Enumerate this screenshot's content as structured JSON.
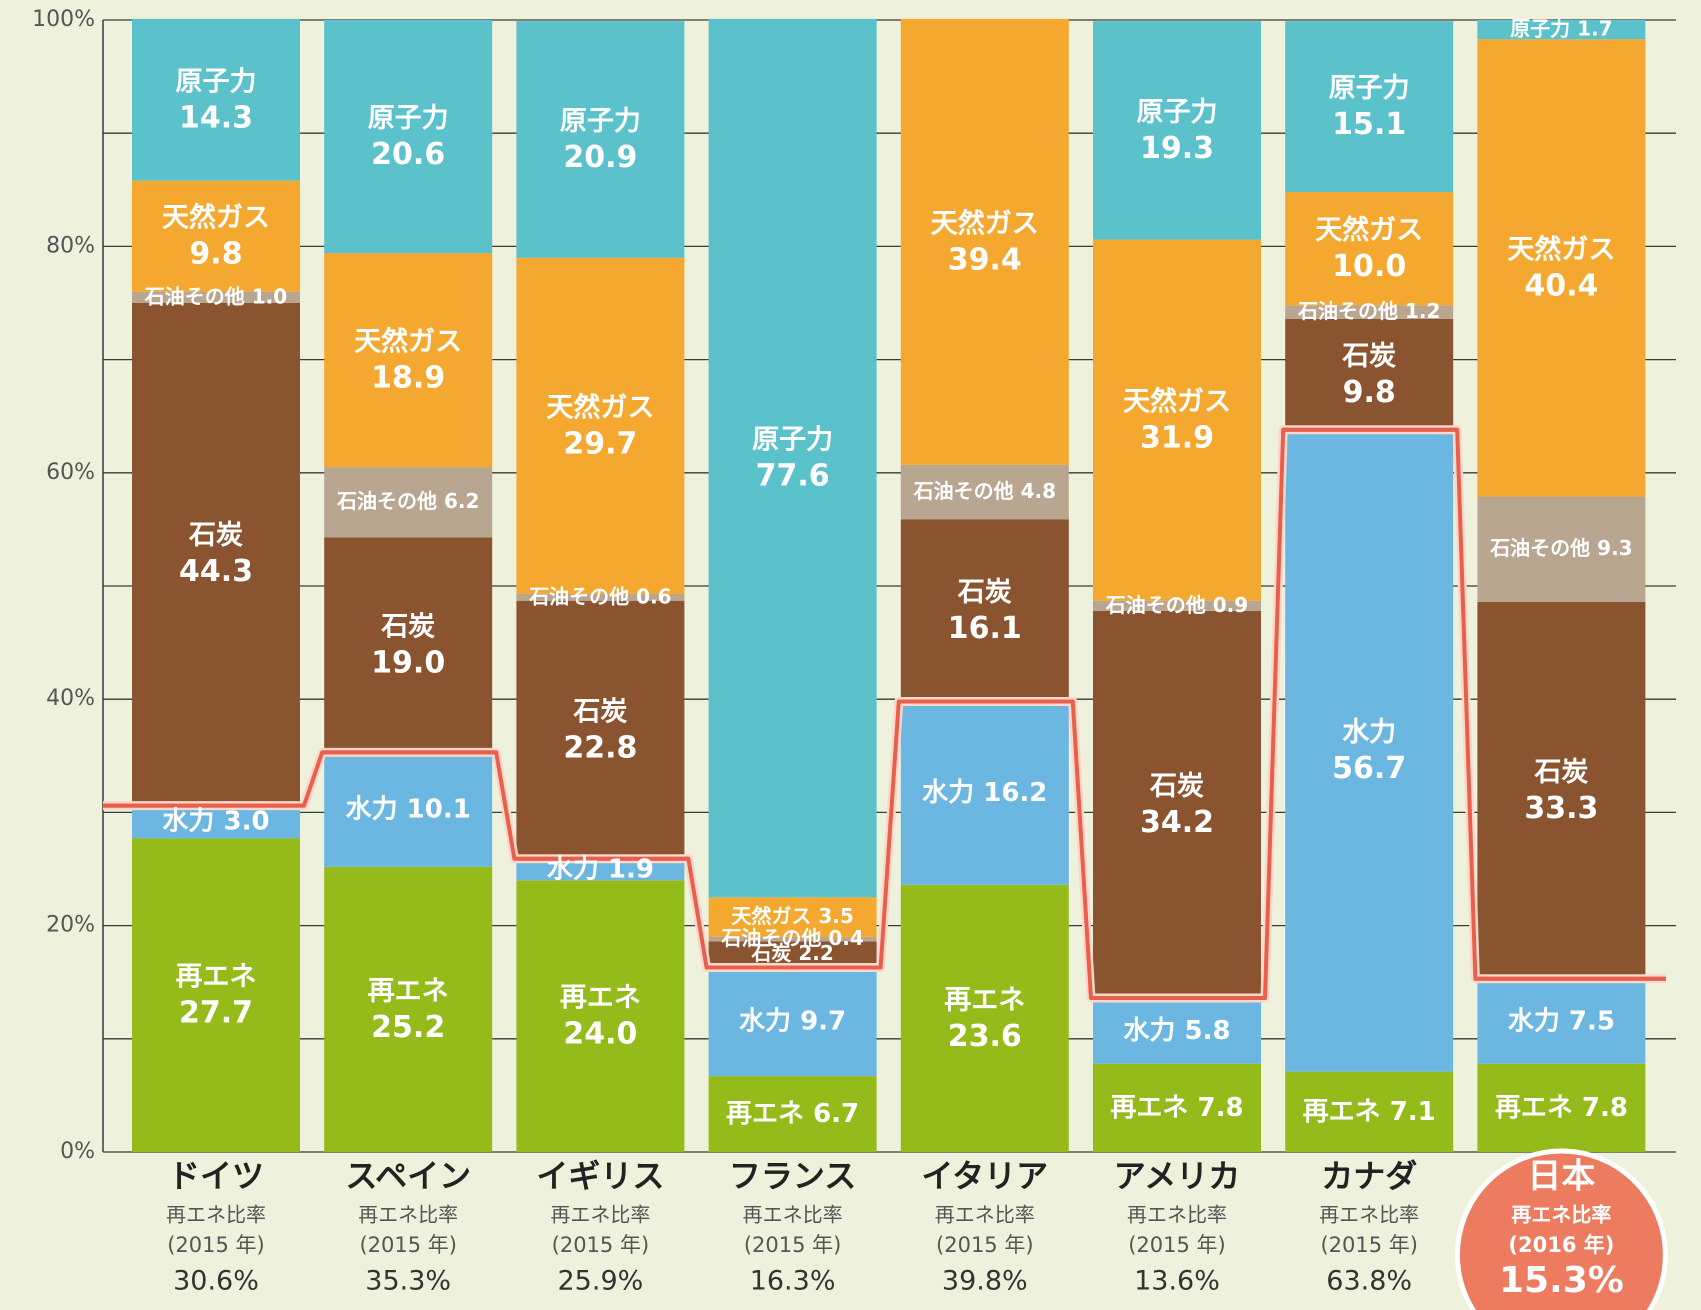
{
  "chart_data": {
    "type": "stacked_bar",
    "categories": [
      "ドイツ",
      "スペイン",
      "イギリス",
      "フランス",
      "イタリア",
      "アメリカ",
      "カナダ",
      "日本"
    ],
    "series": [
      {
        "name": "再エネ",
        "color": "#94bb1a",
        "values": [
          27.7,
          25.2,
          24.0,
          6.7,
          23.6,
          7.8,
          7.1,
          7.8
        ],
        "value_labels": [
          "27.7",
          "25.2",
          "24.0",
          "6.7",
          "23.6",
          "7.8",
          "7.1",
          "7.8"
        ]
      },
      {
        "name": "水力",
        "color": "#6cb7e2",
        "values": [
          3.0,
          10.1,
          1.9,
          9.7,
          16.2,
          5.8,
          56.7,
          7.5
        ],
        "value_labels": [
          "3.0",
          "10.1",
          "1.9",
          "9.7",
          "16.2",
          "5.8",
          "56.7",
          "7.5"
        ]
      },
      {
        "name": "石炭",
        "color": "#8a5430",
        "values": [
          44.3,
          19.0,
          22.8,
          2.2,
          16.1,
          34.2,
          9.8,
          33.3
        ],
        "value_labels": [
          "44.3",
          "19.0",
          "22.8",
          "2.2",
          "16.1",
          "34.2",
          "9.8",
          "33.3"
        ]
      },
      {
        "name": "石油その他",
        "color": "#b9a691",
        "values": [
          1.0,
          6.2,
          0.6,
          0.4,
          4.8,
          0.9,
          1.2,
          9.3
        ],
        "value_labels": [
          "1.0",
          "6.2",
          "0.6",
          "0.4",
          "4.8",
          "0.9",
          "1.2",
          "9.3"
        ]
      },
      {
        "name": "天然ガス",
        "color": "#f5a830",
        "values": [
          9.8,
          18.9,
          29.7,
          3.5,
          39.4,
          31.9,
          10.0,
          40.4
        ],
        "value_labels": [
          "9.8",
          "18.9",
          "29.7",
          "3.5",
          "39.4",
          "31.9",
          "10.0",
          "40.4"
        ]
      },
      {
        "name": "原子力",
        "color": "#5bc1cb",
        "values": [
          14.3,
          20.6,
          20.9,
          77.6,
          null,
          19.3,
          15.1,
          1.7
        ],
        "value_labels": [
          "14.3",
          "20.6",
          "20.9",
          "77.6",
          null,
          "19.3",
          "15.1",
          "1.7"
        ]
      }
    ],
    "ratio_label": "再エネ比率",
    "year_labels": [
      "(2015 年)",
      "(2015 年)",
      "(2015 年)",
      "(2015 年)",
      "(2015 年)",
      "(2015 年)",
      "(2015 年)",
      "(2016 年)"
    ],
    "ratio_values": [
      30.6,
      35.3,
      25.9,
      16.3,
      39.8,
      13.6,
      63.8,
      15.3
    ],
    "ratio_value_labels": [
      "30.6%",
      "35.3%",
      "25.9%",
      "16.3%",
      "39.8%",
      "13.6%",
      "63.8%",
      "15.3%"
    ],
    "ratio_line_color": "#e8604c",
    "highlight_index": 7,
    "highlight_color": "#ec7b5f",
    "ylim": [
      0,
      100
    ],
    "yticks": [
      {
        "value": 0,
        "label": "0%"
      },
      {
        "value": 20,
        "label": "20%"
      },
      {
        "value": 40,
        "label": "40%"
      },
      {
        "value": 60,
        "label": "60%"
      },
      {
        "value": 80,
        "label": "80%"
      },
      {
        "value": 100,
        "label": "100%"
      }
    ],
    "minor_yticks": [
      10,
      30,
      50,
      70,
      90
    ],
    "grid": true
  }
}
